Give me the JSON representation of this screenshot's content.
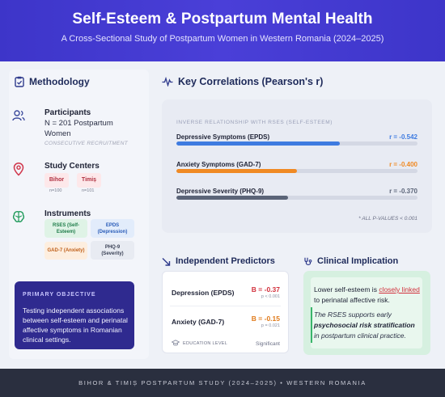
{
  "header": {
    "title": "Self-Esteem & Postpartum Mental Health",
    "subtitle": "A Cross-Sectional Study of Postpartum Women in Western Romania (2024–2025)"
  },
  "methodology": {
    "title": "Methodology",
    "participants": {
      "label": "Participants",
      "line1": "N = 201 Postpartum",
      "line2": "Women",
      "note": "CONSECUTIVE RECRUITMENT"
    },
    "centers": {
      "label": "Study Centers",
      "items": [
        {
          "name": "Bihor",
          "n": "n=100"
        },
        {
          "name": "Timiș",
          "n": "n=101"
        }
      ]
    },
    "instruments": {
      "label": "Instruments",
      "items": [
        {
          "line1": "RSES (Self-",
          "line2": "Esteem)"
        },
        {
          "line1": "EPDS",
          "line2": "(Depression)"
        },
        {
          "line1": "GAD-7 (Anxiety)",
          "line2": ""
        },
        {
          "line1": "PHQ-9",
          "line2": "(Severity)"
        }
      ]
    },
    "objective": {
      "title": "PRIMARY OBJECTIVE",
      "body": "Testing independent associations between self-esteem and perinatal affective symptoms in Romanian clinical settings."
    }
  },
  "correlations": {
    "title": "Key Correlations (Pearson's r)",
    "subtitle": "INVERSE RELATIONSHIP WITH RSES (SELF-ESTEEM)",
    "items": [
      {
        "label": "Depressive Symptoms (EPDS)",
        "r": "r = -0.542",
        "value": -0.542,
        "color": "#3e7be0"
      },
      {
        "label": "Anxiety Symptoms (GAD-7)",
        "r": "r = -0.400",
        "value": -0.4,
        "color": "#f08a24"
      },
      {
        "label": "Depressive Severity (PHQ-9)",
        "r": "r = -0.370",
        "value": -0.37,
        "color": "#5b6478"
      }
    ],
    "note": "* ALL P-VALUES < 0.001"
  },
  "predictors": {
    "title": "Independent Predictors",
    "items": [
      {
        "label": "Depression (EPDS)",
        "b": "B = -0.37",
        "p": "p < 0.001",
        "color": "#d2303c"
      },
      {
        "label": "Anxiety (GAD-7)",
        "b": "B = -0.15",
        "p": "p = 0.021",
        "color": "#e07a1a"
      }
    ],
    "footer_label": "EDUCATION LEVEL",
    "footer_value": "Significant"
  },
  "implication": {
    "title": "Clinical Implication",
    "line_a": "Lower self-esteem is ",
    "line_link": "closely linked",
    "line_b": " to perinatal affective risk.",
    "line2_a": "The RSES supports early ",
    "line2_bold": "psychosocial risk stratification",
    "line2_b": " in postpartum clinical practice."
  },
  "footer": {
    "text": "BIHOR & TIMIȘ POSTPARTUM STUDY (2024–2025) • WESTERN ROMANIA"
  },
  "colors": {
    "header": "#3d35c9",
    "objective": "#2f2a8f",
    "footer": "#2a2f3f",
    "implication": "#d6f0e0"
  }
}
